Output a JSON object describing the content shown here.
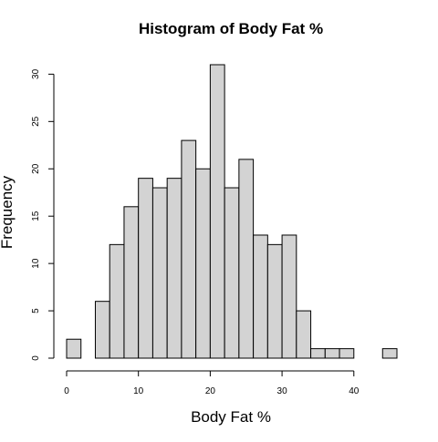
{
  "chart_data": {
    "type": "bar",
    "title": "Histogram of Body Fat %",
    "xlabel": "Body Fat %",
    "ylabel": "Frequency",
    "bin_edges": [
      0,
      2,
      4,
      6,
      8,
      10,
      12,
      14,
      16,
      18,
      20,
      22,
      24,
      26,
      28,
      30,
      32,
      34,
      36,
      38,
      40,
      42,
      44,
      46
    ],
    "values": [
      2,
      0,
      6,
      12,
      16,
      19,
      18,
      19,
      23,
      20,
      31,
      18,
      21,
      13,
      12,
      13,
      5,
      1,
      1,
      1,
      0,
      0,
      1
    ],
    "xlim": [
      0,
      46
    ],
    "ylim": [
      0,
      31
    ],
    "x_ticks": [
      0,
      10,
      20,
      30,
      40
    ],
    "y_ticks": [
      0,
      5,
      10,
      15,
      20,
      25,
      30
    ],
    "grid": false,
    "bar_color": "#d3d3d3",
    "edge_color": "#000000"
  }
}
